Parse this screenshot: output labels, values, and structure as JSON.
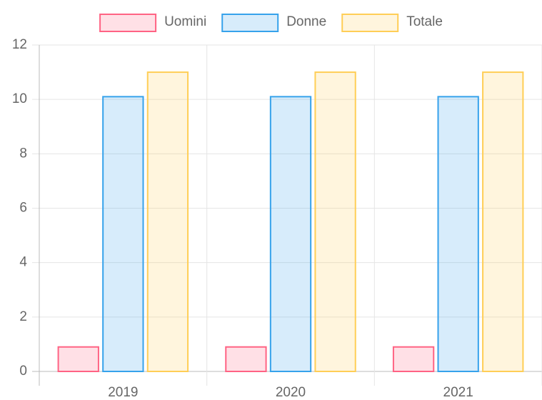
{
  "chart_data": {
    "type": "bar",
    "categories": [
      "2019",
      "2020",
      "2021"
    ],
    "series": [
      {
        "name": "Uomini",
        "color": "rgb(255, 99, 132)",
        "values": [
          0.9,
          0.9,
          0.9
        ]
      },
      {
        "name": "Donne",
        "color": "rgb(54, 162, 235)",
        "values": [
          10.1,
          10.1,
          10.1
        ]
      },
      {
        "name": "Totale",
        "color": "rgb(255, 206, 86)",
        "values": [
          11,
          11,
          11
        ]
      }
    ],
    "ylim": [
      0,
      12
    ],
    "yticks": [
      0,
      2,
      4,
      6,
      8,
      10,
      12
    ],
    "grid": true,
    "legend": "top"
  }
}
